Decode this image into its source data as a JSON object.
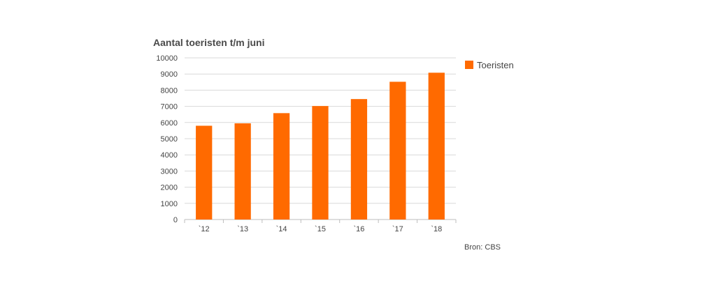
{
  "chart_data": {
    "type": "bar",
    "title": "Aantal toeristen t/m juni",
    "xlabel": "",
    "ylabel": "",
    "categories": [
      "`12",
      "`13",
      "`14",
      "`15",
      "`16",
      "`17",
      "`18"
    ],
    "series": [
      {
        "name": "Toeristen",
        "values": [
          5800,
          5950,
          6580,
          7020,
          7450,
          8520,
          9080
        ],
        "color": "#ff6a00"
      }
    ],
    "ylim": [
      0,
      10000
    ],
    "yticks": [
      0,
      1000,
      2000,
      3000,
      4000,
      5000,
      6000,
      7000,
      8000,
      9000,
      10000
    ],
    "grid": true,
    "legend_position": "right",
    "source": "Bron: CBS"
  }
}
